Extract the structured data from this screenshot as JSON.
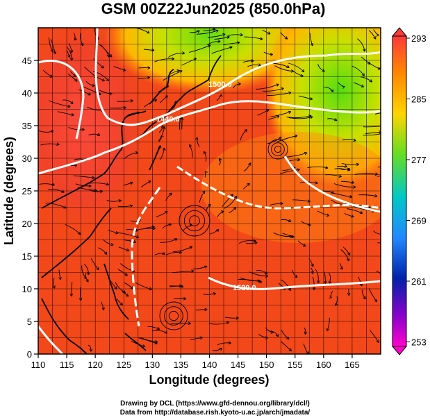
{
  "title": "GSM 00Z22Jun2025 (850.0hPa)",
  "xlabel": "Longitude (degrees)",
  "ylabel": "Latitude  (degrees)",
  "x_ticks": [
    "110",
    "115",
    "120",
    "125",
    "130",
    "135",
    "140",
    "145",
    "150",
    "155",
    "160",
    "165"
  ],
  "y_ticks": [
    "0",
    "5",
    "10",
    "15",
    "20",
    "25",
    "30",
    "35",
    "40",
    "45"
  ],
  "colorbar": {
    "labels": [
      "293",
      "285",
      "277",
      "269",
      "261",
      "253"
    ],
    "colors": [
      "#ff3a3a",
      "#ff8800",
      "#ffd400",
      "#44cc22",
      "#00c8c8",
      "#2288ff",
      "#0022aa",
      "#8800cc",
      "#ff00cc"
    ]
  },
  "contour_labels": [
    "1440.0",
    "1500.0",
    "1520.0"
  ],
  "credits": {
    "line1": "Drawing by DCL (https://www.gfd-dennou.org/library/dcl/)",
    "line2": "Data from http://database.rish.kyoto-u.ac.jp/arch/jmadata/"
  },
  "colors": {
    "field_hot": "#e83a1a",
    "field_warm": "#ff7a12",
    "field_mild": "#ffb800",
    "field_cool": "#c8e000",
    "field_cold": "#55dd11",
    "contour": "#ffffff",
    "coast": "#000000"
  }
}
